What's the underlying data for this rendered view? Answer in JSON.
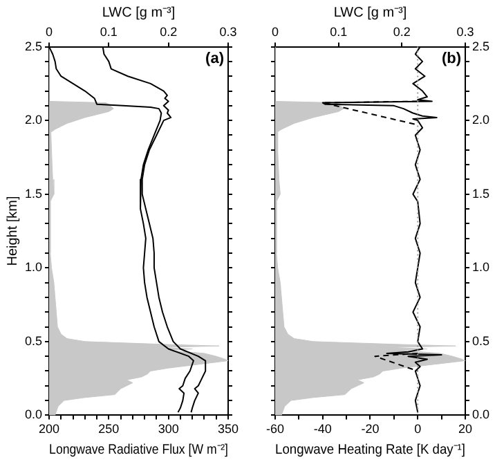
{
  "chart_data": [
    {
      "type": "line",
      "xlabel": "Longwave Radiative Flux [W m⁻²]",
      "x2label": "LWC [g m⁻³]",
      "ylabel": "Height [km]",
      "annotations": [
        "(a)"
      ],
      "xlim": [
        200,
        350
      ],
      "xticks": [
        200,
        {
          "value": 210,
          "label": null
        },
        {
          "value": 220,
          "label": null
        },
        {
          "value": 230,
          "label": null
        },
        {
          "value": 240,
          "label": null
        },
        250,
        {
          "value": 260,
          "label": null
        },
        {
          "value": 270,
          "label": null
        },
        {
          "value": 280,
          "label": null
        },
        {
          "value": 290,
          "label": null
        },
        300,
        {
          "value": 310,
          "label": null
        },
        {
          "value": 320,
          "label": null
        },
        {
          "value": 330,
          "label": null
        },
        {
          "value": 340,
          "label": null
        },
        350
      ],
      "x2lim": [
        0,
        0.3
      ],
      "x2ticks": [
        0.0,
        0.1,
        0.2,
        0.3
      ],
      "ylim": [
        0,
        2.5
      ],
      "yticks": [
        {
          "value": 0,
          "label": "0.0"
        },
        {
          "value": 0.1,
          "label": null
        },
        {
          "value": 0.2,
          "label": null
        },
        {
          "value": 0.3,
          "label": null
        },
        {
          "value": 0.4,
          "label": null
        },
        0.5,
        {
          "value": 0.6,
          "label": null
        },
        {
          "value": 0.7,
          "label": null
        },
        {
          "value": 0.8,
          "label": null
        },
        {
          "value": 0.9,
          "label": null
        },
        {
          "value": 1,
          "label": "1.0"
        },
        {
          "value": 1.1,
          "label": null
        },
        {
          "value": 1.2,
          "label": null
        },
        {
          "value": 1.3,
          "label": null
        },
        {
          "value": 1.4,
          "label": null
        },
        1.5,
        {
          "value": 1.6,
          "label": null
        },
        {
          "value": 1.7,
          "label": null
        },
        {
          "value": 1.8,
          "label": null
        },
        {
          "value": 1.9,
          "label": null
        },
        {
          "value": 2,
          "label": "2.0"
        },
        {
          "value": 2.1,
          "label": null
        },
        {
          "value": 2.2,
          "label": null
        },
        {
          "value": 2.3,
          "label": null
        },
        {
          "value": 2.4,
          "label": null
        },
        2.5
      ],
      "series": [
        {
          "type": "area",
          "axis": "x2",
          "color": "#c8c8c8",
          "x": [
            0,
            0,
            0.095,
            0.1,
            0.108,
            0.1,
            0.08,
            0.06,
            0.045,
            0.03,
            0.02,
            0.01,
            0.003,
            0.004,
            0.006,
            0.008,
            0.002,
            0.002,
            0.004,
            0.008,
            0.01,
            0.012,
            0.014,
            0.02,
            0.03,
            0.06,
            0.2,
            0.285,
            0.18,
            0.24,
            0.2,
            0.26,
            0.28,
            0.295,
            0.3,
            0.28,
            0.24,
            0.2,
            0.17,
            0.165,
            0.155,
            0.13,
            0.14,
            0.13,
            0.12,
            0.115,
            0.11,
            0.06,
            0.025,
            0.015,
            0.01
          ],
          "values": [
            2.5,
            2.13,
            2.12,
            2.11,
            2.08,
            2.06,
            2.04,
            2.02,
            2.0,
            1.98,
            1.96,
            1.94,
            1.92,
            1.8,
            1.6,
            1.5,
            1.45,
            1.1,
            1.0,
            0.9,
            0.8,
            0.7,
            0.6,
            0.55,
            0.52,
            0.5,
            0.48,
            0.47,
            0.46,
            0.45,
            0.44,
            0.42,
            0.4,
            0.38,
            0.37,
            0.36,
            0.34,
            0.32,
            0.3,
            0.28,
            0.26,
            0.24,
            0.22,
            0.2,
            0.18,
            0.16,
            0.14,
            0.12,
            0.1,
            0.06,
            0.0
          ]
        },
        {
          "type": "line",
          "color": "#000000",
          "x": [
            200,
            203,
            205,
            206,
            210,
            220,
            230,
            238,
            240,
            262,
            285,
            292,
            294,
            293,
            288,
            283,
            279,
            277,
            276,
            277,
            279,
            281,
            280,
            279,
            280,
            282,
            285,
            288,
            292,
            300,
            317,
            321,
            318,
            314,
            312,
            309,
            313,
            312,
            310,
            308
          ],
          "values": [
            2.5,
            2.45,
            2.4,
            2.35,
            2.3,
            2.25,
            2.2,
            2.15,
            2.11,
            2.1,
            2.09,
            2.08,
            2.05,
            2.0,
            1.9,
            1.8,
            1.7,
            1.6,
            1.5,
            1.4,
            1.3,
            1.2,
            1.1,
            1.0,
            0.9,
            0.8,
            0.7,
            0.6,
            0.5,
            0.45,
            0.4,
            0.37,
            0.3,
            0.25,
            0.2,
            0.18,
            0.15,
            0.1,
            0.05,
            0.02
          ]
        },
        {
          "type": "line",
          "color": "#000000",
          "x": [
            245,
            246,
            250,
            252,
            266,
            285,
            296,
            299,
            297,
            300,
            296,
            300,
            299,
            302,
            296,
            290,
            284,
            280,
            278,
            278,
            281,
            284,
            287,
            288,
            288,
            290,
            292,
            295,
            299,
            304,
            310,
            325,
            331,
            331,
            328,
            325,
            322,
            325,
            322,
            320,
            319
          ],
          "values": [
            2.5,
            2.45,
            2.4,
            2.35,
            2.3,
            2.25,
            2.2,
            2.17,
            2.15,
            2.13,
            2.1,
            2.07,
            2.05,
            2.02,
            2.0,
            1.9,
            1.8,
            1.7,
            1.6,
            1.5,
            1.4,
            1.3,
            1.2,
            1.1,
            1.0,
            0.9,
            0.8,
            0.7,
            0.6,
            0.5,
            0.45,
            0.4,
            0.37,
            0.3,
            0.25,
            0.2,
            0.18,
            0.15,
            0.1,
            0.05,
            0.02
          ]
        }
      ]
    },
    {
      "type": "line",
      "xlabel": "Longwave Heating Rate [K day⁻¹]",
      "x2label": "LWC [g m⁻³]",
      "annotations": [
        "(b)"
      ],
      "xlim": [
        -60,
        20
      ],
      "xticks": [
        -60,
        {
          "value": -50,
          "label": null
        },
        -40,
        {
          "value": -30,
          "label": null
        },
        -20,
        {
          "value": -10,
          "label": null
        },
        0,
        {
          "value": 10,
          "label": null
        },
        20
      ],
      "x2lim": [
        0,
        0.3
      ],
      "x2ticks": [
        0.0,
        0.1,
        0.2,
        0.3
      ],
      "ylim": [
        0,
        2.5
      ],
      "yticks": [
        {
          "value": 0,
          "label": "0.0"
        },
        {
          "value": 0.1,
          "label": null
        },
        {
          "value": 0.2,
          "label": null
        },
        {
          "value": 0.3,
          "label": null
        },
        {
          "value": 0.4,
          "label": null
        },
        0.5,
        {
          "value": 0.6,
          "label": null
        },
        {
          "value": 0.7,
          "label": null
        },
        {
          "value": 0.8,
          "label": null
        },
        {
          "value": 0.9,
          "label": null
        },
        {
          "value": 1,
          "label": "1.0"
        },
        {
          "value": 1.1,
          "label": null
        },
        {
          "value": 1.2,
          "label": null
        },
        {
          "value": 1.3,
          "label": null
        },
        {
          "value": 1.4,
          "label": null
        },
        1.5,
        {
          "value": 1.6,
          "label": null
        },
        {
          "value": 1.7,
          "label": null
        },
        {
          "value": 1.8,
          "label": null
        },
        {
          "value": 1.9,
          "label": null
        },
        {
          "value": 2,
          "label": "2.0"
        },
        {
          "value": 2.1,
          "label": null
        },
        {
          "value": 2.2,
          "label": null
        },
        {
          "value": 2.3,
          "label": null
        },
        {
          "value": 2.4,
          "label": null
        },
        2.5
      ],
      "ref_lines": [
        {
          "axis": "x",
          "value": 0,
          "color": "#999999",
          "line_style": "dotted"
        }
      ],
      "series": [
        {
          "type": "area",
          "axis": "x2",
          "color": "#c8c8c8",
          "x": [
            0,
            0,
            0.095,
            0.1,
            0.108,
            0.1,
            0.08,
            0.06,
            0.045,
            0.03,
            0.02,
            0.01,
            0.003,
            0.004,
            0.006,
            0.008,
            0.002,
            0.002,
            0.004,
            0.008,
            0.01,
            0.012,
            0.014,
            0.02,
            0.03,
            0.06,
            0.2,
            0.285,
            0.18,
            0.24,
            0.2,
            0.26,
            0.28,
            0.295,
            0.3,
            0.28,
            0.24,
            0.2,
            0.17,
            0.165,
            0.155,
            0.13,
            0.14,
            0.13,
            0.12,
            0.115,
            0.11,
            0.06,
            0.025,
            0.015,
            0.01
          ],
          "values": [
            2.5,
            2.13,
            2.12,
            2.11,
            2.08,
            2.06,
            2.04,
            2.02,
            2.0,
            1.98,
            1.96,
            1.94,
            1.92,
            1.8,
            1.6,
            1.5,
            1.45,
            1.1,
            1.0,
            0.9,
            0.8,
            0.7,
            0.6,
            0.55,
            0.52,
            0.5,
            0.48,
            0.47,
            0.46,
            0.45,
            0.44,
            0.42,
            0.4,
            0.38,
            0.37,
            0.36,
            0.34,
            0.32,
            0.3,
            0.28,
            0.26,
            0.24,
            0.22,
            0.2,
            0.18,
            0.16,
            0.14,
            0.12,
            0.1,
            0.06,
            0.0
          ]
        },
        {
          "type": "line",
          "color": "#000000",
          "line_style": "dashed",
          "x": [
            0,
            -40,
            0
          ],
          "values": [
            2.13,
            2.12,
            1.97
          ]
        },
        {
          "type": "line",
          "color": "#000000",
          "line_style": "dashed",
          "x": [
            0,
            -18,
            0
          ],
          "values": [
            0.42,
            0.4,
            0.3
          ]
        },
        {
          "type": "line",
          "color": "#000000",
          "x": [
            1,
            -1,
            2,
            -1,
            3,
            -2,
            2,
            4,
            0,
            6,
            -40,
            -39,
            -10,
            -6,
            -2,
            2,
            8,
            -2,
            0,
            2,
            -1,
            1,
            -1,
            1,
            -2,
            0,
            1,
            -1,
            1,
            0,
            -1,
            1,
            -2,
            1,
            0,
            2,
            -4,
            -13,
            10,
            -4,
            4,
            -1,
            1,
            -1,
            1,
            -1,
            0
          ],
          "values": [
            2.5,
            2.45,
            2.4,
            2.35,
            2.3,
            2.25,
            2.2,
            2.16,
            2.14,
            2.13,
            2.12,
            2.11,
            2.1,
            2.08,
            2.05,
            2.03,
            2.02,
            2.01,
            2.0,
            1.95,
            1.9,
            1.8,
            1.7,
            1.6,
            1.5,
            1.45,
            1.3,
            1.2,
            1.1,
            1.0,
            0.9,
            0.8,
            0.7,
            0.6,
            0.5,
            0.45,
            0.43,
            0.42,
            0.41,
            0.4,
            0.38,
            0.36,
            0.33,
            0.3,
            0.2,
            0.1,
            0.02
          ]
        }
      ]
    }
  ]
}
